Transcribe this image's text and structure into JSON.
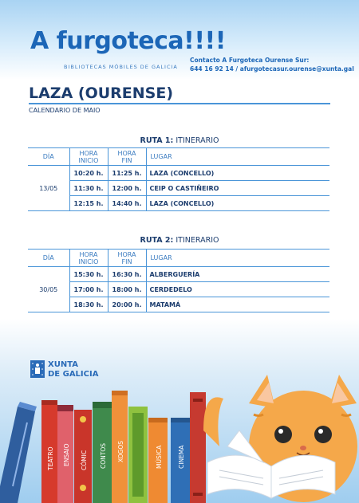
{
  "header": {
    "title": "A furgoteca!!!!",
    "subtitle": "BIBLIOTECAS MÓBILES DE GALICIA",
    "contact_line1": "Contacto A Furgoteca Ourense Sur:",
    "contact_line2": "644 16 92 14 / afurgotecasur.ourense@xunta.gal"
  },
  "place": "LAZA (OURENSE)",
  "month": "CALENDARIO DE MAIO",
  "columns": {
    "dia": "DÍA",
    "hora_inicio": [
      "HORA",
      "INICIO"
    ],
    "hora_fin": [
      "HORA",
      "FIN"
    ],
    "lugar": "LUGAR"
  },
  "routes": [
    {
      "label": "RUTA 1:",
      "sub": "ITINERARIO",
      "date": "13/05",
      "stops": [
        {
          "start": "10:20 h.",
          "end": "11:25 h.",
          "place": "LAZA (CONCELLO)"
        },
        {
          "start": "11:30 h.",
          "end": "12:00 h.",
          "place": "CEIP O CASTIÑEIRO"
        },
        {
          "start": "12:15 h.",
          "end": "14:40 h.",
          "place": "LAZA (CONCELLO)"
        }
      ]
    },
    {
      "label": "RUTA 2:",
      "sub": "ITINERARIO",
      "date": "30/05",
      "stops": [
        {
          "start": "15:30 h.",
          "end": "16:30 h.",
          "place": "ALBERGUERÍA"
        },
        {
          "start": "17:00 h.",
          "end": "18:00 h.",
          "place": "CERDEDELO"
        },
        {
          "start": "18:30 h.",
          "end": "20:00 h.",
          "place": "MATAMÁ"
        }
      ]
    }
  ],
  "footer": {
    "org_line1": "XUNTA",
    "org_line2": "DE GALICIA",
    "logo_icon": "xunta-emblem-icon"
  },
  "books": [
    "TEATRO",
    "ENSAIO",
    "CÓMIC",
    "CONTOS",
    "XOGOS",
    "MÚSICA",
    "CINEMA"
  ],
  "colors": {
    "brand_blue": "#1c66b7",
    "table_line": "#4a95d8",
    "text_dark": "#1c3d6e",
    "cat_orange": "#f5a84a"
  }
}
